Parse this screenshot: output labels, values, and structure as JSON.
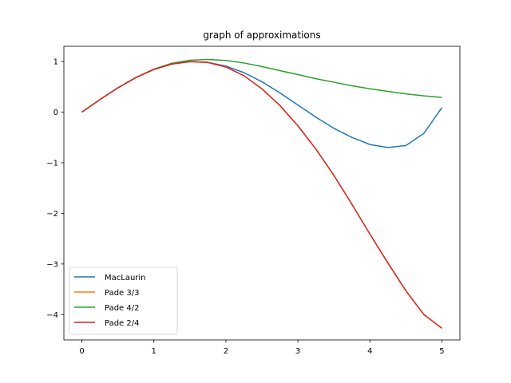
{
  "chart_data": {
    "type": "line",
    "title": "graph of approximations",
    "xlabel": "",
    "ylabel": "",
    "xlim": [
      -0.25,
      5.25
    ],
    "ylim": [
      -4.5,
      1.3
    ],
    "xticks": [
      0,
      1,
      2,
      3,
      4,
      5
    ],
    "xtick_labels": [
      "0",
      "1",
      "2",
      "3",
      "4",
      "5"
    ],
    "yticks": [
      -4,
      -3,
      -2,
      -1,
      0,
      1
    ],
    "ytick_labels": [
      "−4",
      "−3",
      "−2",
      "−1",
      "0",
      "1"
    ],
    "grid": false,
    "legend_position": "lower-left",
    "series": [
      {
        "name": "MacLaurin",
        "color": "#1f77b4",
        "x": [
          0,
          0.25,
          0.5,
          0.75,
          1,
          1.25,
          1.5,
          1.75,
          2,
          2.25,
          2.5,
          2.75,
          3,
          3.25,
          3.5,
          3.75,
          4,
          4.25,
          4.5,
          4.75,
          5
        ],
        "y": [
          0,
          0.247,
          0.479,
          0.682,
          0.841,
          0.949,
          0.997,
          0.984,
          0.909,
          0.78,
          0.6,
          0.38,
          0.14,
          -0.1,
          -0.32,
          -0.5,
          -0.64,
          -0.7,
          -0.66,
          -0.42,
          0.09
        ]
      },
      {
        "name": "Pade 3/3",
        "color": "#ff7f0e",
        "x": [
          0,
          0.25,
          0.5,
          0.75,
          1,
          1.25,
          1.5,
          1.75,
          2,
          2.25,
          2.5,
          2.75,
          3,
          3.25,
          3.5,
          3.75,
          4,
          4.25,
          4.5,
          4.75,
          5
        ],
        "y": [
          0,
          0.247,
          0.479,
          0.682,
          0.842,
          0.949,
          0.997,
          0.98,
          0.89,
          0.72,
          0.46,
          0.13,
          -0.27,
          -0.73,
          -1.25,
          -1.82,
          -2.41,
          -2.98,
          -3.53,
          -4.0,
          -4.27
        ]
      },
      {
        "name": "Pade 4/2",
        "color": "#2ca02c",
        "x": [
          0,
          0.25,
          0.5,
          0.75,
          1,
          1.25,
          1.5,
          1.75,
          2,
          2.25,
          2.5,
          2.75,
          3,
          3.25,
          3.5,
          3.75,
          4,
          4.25,
          4.5,
          4.75,
          5
        ],
        "y": [
          0,
          0.247,
          0.48,
          0.685,
          0.85,
          0.965,
          1.025,
          1.04,
          1.02,
          0.97,
          0.9,
          0.82,
          0.74,
          0.66,
          0.59,
          0.52,
          0.46,
          0.41,
          0.36,
          0.32,
          0.29
        ]
      },
      {
        "name": "Pade 2/4",
        "color": "#d62728",
        "x": [
          0,
          0.25,
          0.5,
          0.75,
          1,
          1.25,
          1.5,
          1.75,
          2,
          2.25,
          2.5,
          2.75,
          3,
          3.25,
          3.5,
          3.75,
          4,
          4.25,
          4.5,
          4.75,
          5
        ],
        "y": [
          0,
          0.247,
          0.479,
          0.682,
          0.842,
          0.949,
          0.997,
          0.98,
          0.89,
          0.72,
          0.46,
          0.13,
          -0.27,
          -0.73,
          -1.25,
          -1.82,
          -2.41,
          -2.98,
          -3.53,
          -4.0,
          -4.27
        ]
      }
    ]
  }
}
